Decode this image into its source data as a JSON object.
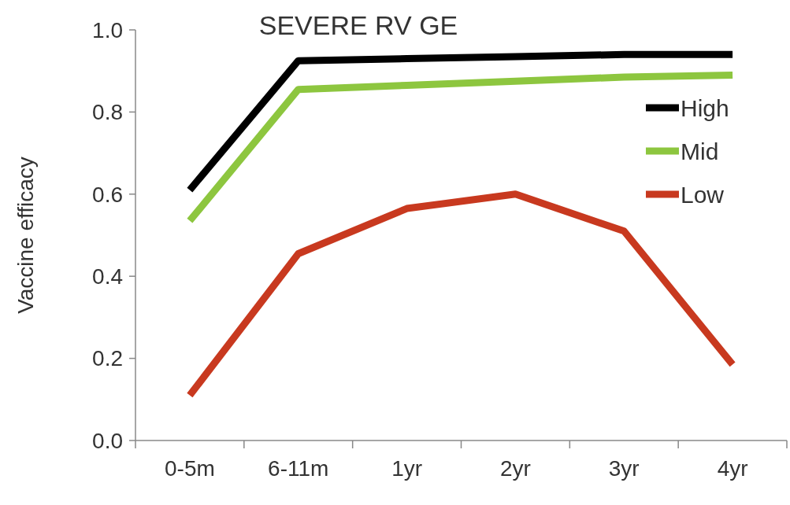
{
  "chart_data": {
    "type": "line",
    "title": "SEVERE RV GE",
    "ylabel": "Vaccine efficacy",
    "categories": [
      "0-5m",
      "6-11m",
      "1yr",
      "2yr",
      "3yr",
      "4yr"
    ],
    "series": [
      {
        "name": "High",
        "color": "#000000",
        "values": [
          0.61,
          0.925,
          0.93,
          0.935,
          0.94,
          0.94
        ]
      },
      {
        "name": "Mid",
        "color": "#8dc63f",
        "values": [
          0.535,
          0.855,
          0.865,
          0.875,
          0.885,
          0.89
        ]
      },
      {
        "name": "Low",
        "color": "#c8391f",
        "values": [
          0.11,
          0.455,
          0.565,
          0.6,
          0.51,
          0.185
        ]
      }
    ],
    "ylim": [
      0,
      1
    ],
    "yticks": [
      {
        "value": 0,
        "label": "0.0"
      },
      {
        "value": 0.2,
        "label": "0.2"
      },
      {
        "value": 0.4,
        "label": "0.4"
      },
      {
        "value": 0.6,
        "label": "0.6"
      },
      {
        "value": 0.8,
        "label": "0.8"
      },
      {
        "value": 1,
        "label": "1.0"
      }
    ],
    "grid": false,
    "legend": "top right",
    "marker": "none",
    "line_style": "solid"
  }
}
